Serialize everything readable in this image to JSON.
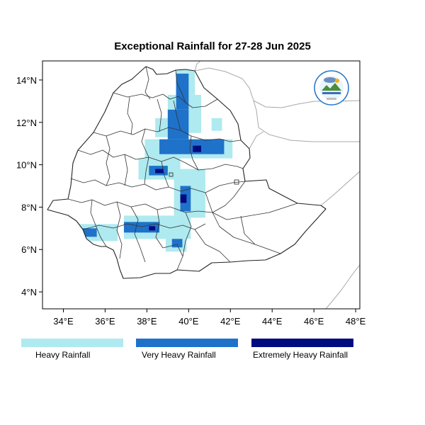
{
  "title": "Exceptional Rainfall for 27-28 Jun 2025",
  "map": {
    "lon_range": [
      33.0,
      48.2
    ],
    "lat_range": [
      3.2,
      14.9
    ],
    "x_ticks": [
      {
        "lon": 34,
        "label": "34°E"
      },
      {
        "lon": 36,
        "label": "36°E"
      },
      {
        "lon": 38,
        "label": "38°E"
      },
      {
        "lon": 40,
        "label": "40°E"
      },
      {
        "lon": 42,
        "label": "42°E"
      },
      {
        "lon": 44,
        "label": "44°E"
      },
      {
        "lon": 46,
        "label": "46°E"
      },
      {
        "lon": 48,
        "label": "48°E"
      }
    ],
    "y_ticks": [
      {
        "lat": 4,
        "label": "4°N"
      },
      {
        "lat": 6,
        "label": "6°N"
      },
      {
        "lat": 8,
        "label": "8°N"
      },
      {
        "lat": 10,
        "label": "10°N"
      },
      {
        "lat": 12,
        "label": "12°N"
      },
      {
        "lat": 14,
        "label": "14°N"
      }
    ],
    "colors": {
      "heavy": "#aeeaf0",
      "very_heavy": "#1f72c9",
      "extremely_heavy": "#000b80",
      "country_border": "#222222",
      "region_border": "#333333",
      "neighbor_border": "#a8a8a8"
    }
  },
  "rain_areas": [
    {
      "category": "heavy",
      "lon": [
        39.4,
        40.3
      ],
      "lat": [
        13.3,
        14.5
      ]
    },
    {
      "category": "heavy",
      "lon": [
        39.0,
        40.6
      ],
      "lat": [
        11.5,
        13.3
      ]
    },
    {
      "category": "heavy",
      "lon": [
        38.4,
        39.4
      ],
      "lat": [
        11.3,
        12.2
      ]
    },
    {
      "category": "heavy",
      "lon": [
        41.1,
        41.6
      ],
      "lat": [
        11.6,
        12.2
      ]
    },
    {
      "category": "heavy",
      "lon": [
        37.9,
        42.1
      ],
      "lat": [
        10.3,
        11.2
      ]
    },
    {
      "category": "heavy",
      "lon": [
        37.6,
        39.6
      ],
      "lat": [
        9.3,
        10.3
      ]
    },
    {
      "category": "heavy",
      "lon": [
        39.3,
        40.8
      ],
      "lat": [
        7.5,
        9.8
      ]
    },
    {
      "category": "heavy",
      "lon": [
        36.9,
        40.1
      ],
      "lat": [
        6.5,
        7.6
      ]
    },
    {
      "category": "heavy",
      "lon": [
        34.6,
        36.6
      ],
      "lat": [
        6.4,
        7.2
      ]
    },
    {
      "category": "heavy",
      "lon": [
        38.9,
        39.9
      ],
      "lat": [
        5.9,
        6.7
      ]
    },
    {
      "category": "heavy",
      "lon": [
        42.9,
        43.6
      ],
      "lat": [
        9.3,
        9.6
      ]
    },
    {
      "category": "very_heavy",
      "lon": [
        39.4,
        40.0
      ],
      "lat": [
        12.6,
        14.3
      ]
    },
    {
      "category": "very_heavy",
      "lon": [
        39.0,
        40.0
      ],
      "lat": [
        11.2,
        12.6
      ]
    },
    {
      "category": "very_heavy",
      "lon": [
        38.6,
        41.7
      ],
      "lat": [
        10.5,
        11.2
      ]
    },
    {
      "category": "very_heavy",
      "lon": [
        38.1,
        39.0
      ],
      "lat": [
        9.5,
        9.95
      ]
    },
    {
      "category": "very_heavy",
      "lon": [
        39.6,
        40.1
      ],
      "lat": [
        7.8,
        9.0
      ]
    },
    {
      "category": "very_heavy",
      "lon": [
        34.6,
        35.6
      ],
      "lat": [
        6.6,
        7.0
      ]
    },
    {
      "category": "very_heavy",
      "lon": [
        36.9,
        38.6
      ],
      "lat": [
        6.8,
        7.3
      ]
    },
    {
      "category": "very_heavy",
      "lon": [
        39.2,
        39.7
      ],
      "lat": [
        6.1,
        6.5
      ]
    },
    {
      "category": "extremely_heavy",
      "lon": [
        40.2,
        40.6
      ],
      "lat": [
        10.6,
        10.9
      ]
    },
    {
      "category": "extremely_heavy",
      "lon": [
        38.4,
        38.8
      ],
      "lat": [
        9.6,
        9.8
      ]
    },
    {
      "category": "extremely_heavy",
      "lon": [
        39.6,
        39.9
      ],
      "lat": [
        8.2,
        8.6
      ]
    },
    {
      "category": "extremely_heavy",
      "lon": [
        38.1,
        38.4
      ],
      "lat": [
        6.9,
        7.1
      ]
    }
  ],
  "legend": [
    {
      "label": "Heavy Rainfall",
      "color": "#aeeaf0"
    },
    {
      "label": "Very Heavy Rainfall",
      "color": "#1f72c9"
    },
    {
      "label": "Extremely Heavy Rainfall",
      "color": "#000b80"
    }
  ]
}
